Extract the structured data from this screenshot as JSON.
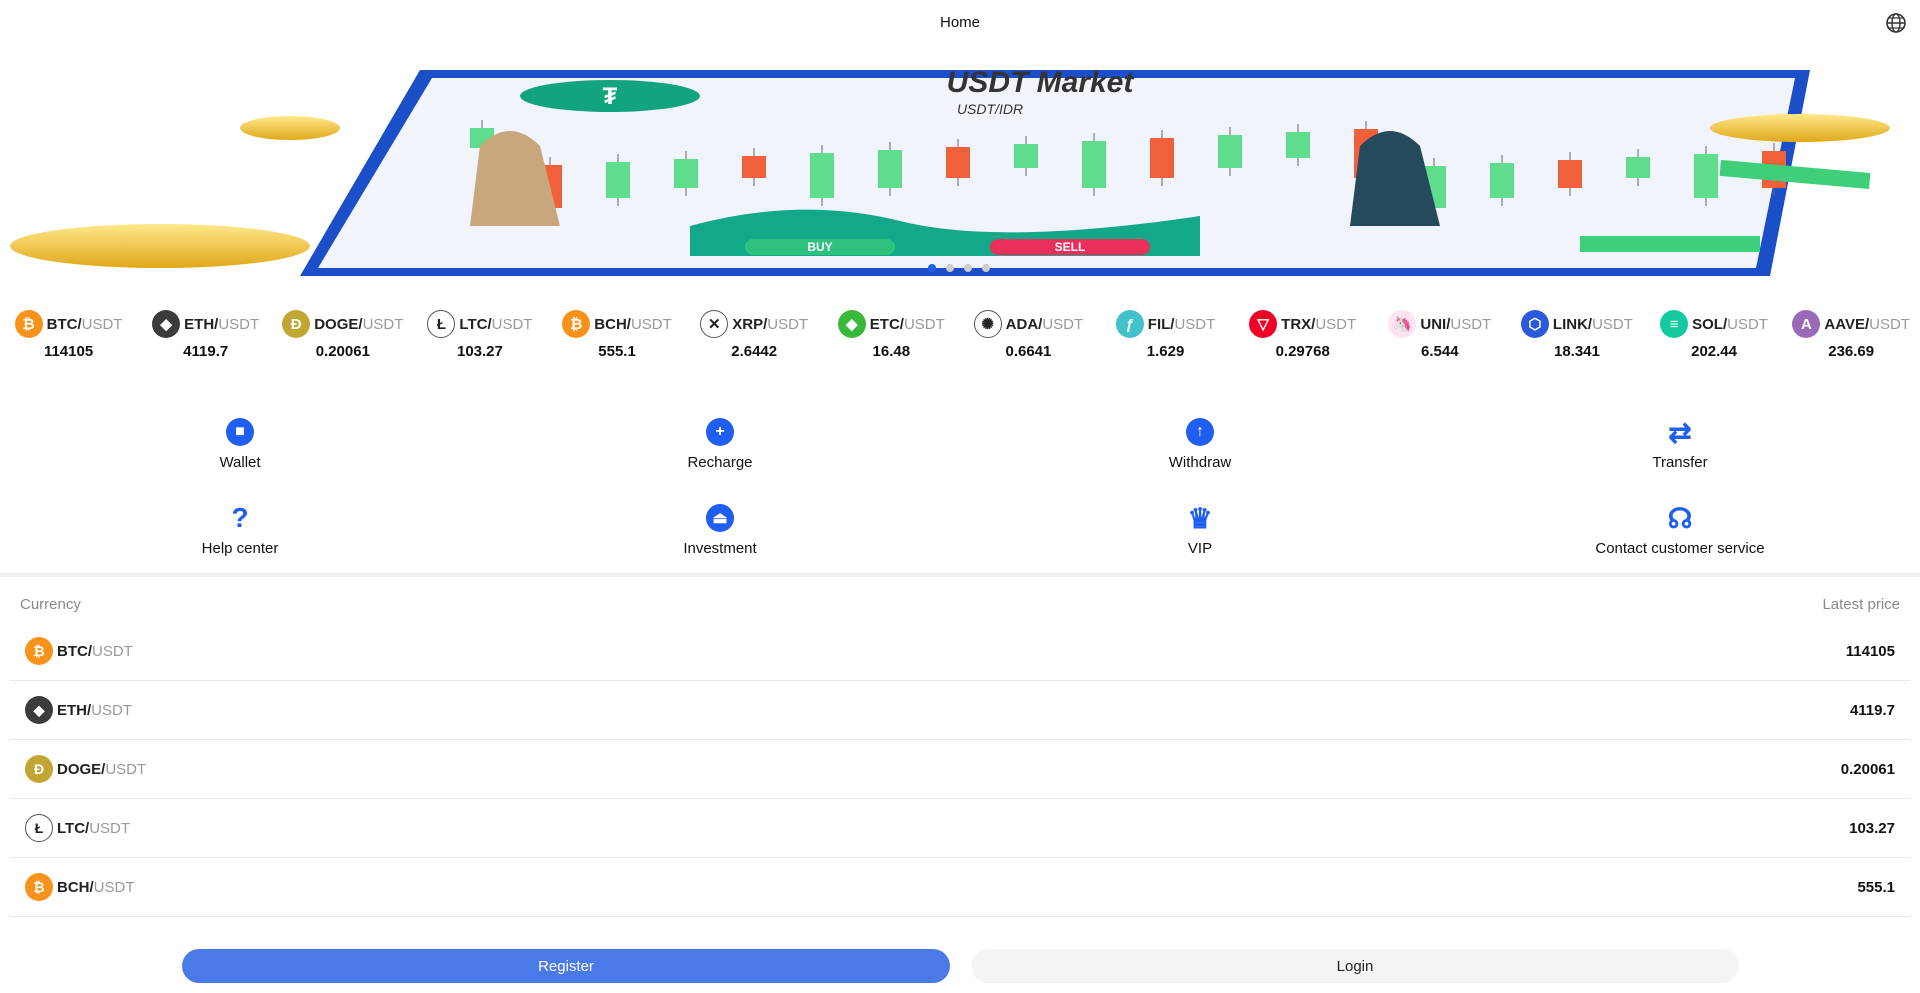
{
  "header": {
    "title": "Home",
    "language_icon": "globe-icon"
  },
  "banner": {
    "headline": "USDT Market",
    "subline": "USDT/IDR",
    "buy": "BUY",
    "sell": "SELL",
    "slides": 4,
    "active_slide": 1
  },
  "quote": "USDT",
  "ticker": [
    {
      "sym": "BTC/",
      "price": "114105",
      "color": "#f7931a",
      "glyph": "₿"
    },
    {
      "sym": "ETH/",
      "price": "4119.7",
      "color": "#3c3c3d",
      "glyph": "◆"
    },
    {
      "sym": "DOGE/",
      "price": "0.20061",
      "color": "#c2a633",
      "glyph": "Ð"
    },
    {
      "sym": "LTC/",
      "price": "103.27",
      "color": "#ffffff",
      "glyph": "Ł"
    },
    {
      "sym": "BCH/",
      "price": "555.1",
      "color": "#f7931a",
      "glyph": "₿"
    },
    {
      "sym": "XRP/",
      "price": "2.6442",
      "color": "#ffffff",
      "glyph": "✕"
    },
    {
      "sym": "ETC/",
      "price": "16.48",
      "color": "#3ab83a",
      "glyph": "◆"
    },
    {
      "sym": "ADA/",
      "price": "0.6641",
      "color": "#ffffff",
      "glyph": "✺"
    },
    {
      "sym": "FIL/",
      "price": "1.629",
      "color": "#42c1ca",
      "glyph": "ƒ"
    },
    {
      "sym": "TRX/",
      "price": "0.29768",
      "color": "#ef0027",
      "glyph": "▽"
    },
    {
      "sym": "UNI/",
      "price": "6.544",
      "color": "#ffe3f1",
      "glyph": "🦄"
    },
    {
      "sym": "LINK/",
      "price": "18.341",
      "color": "#2a5ada",
      "glyph": "⬡"
    },
    {
      "sym": "SOL/",
      "price": "202.44",
      "color": "#14c8a0",
      "glyph": "≡"
    },
    {
      "sym": "AAVE/",
      "price": "236.69",
      "color": "#9a6ab8",
      "glyph": "A"
    }
  ],
  "actions": [
    {
      "label": "Wallet",
      "icon": "wallet-icon",
      "glyph": "■"
    },
    {
      "label": "Recharge",
      "icon": "plus-icon",
      "glyph": "+"
    },
    {
      "label": "Withdraw",
      "icon": "arrow-up-icon",
      "glyph": "↑"
    },
    {
      "label": "Transfer",
      "icon": "transfer-icon",
      "glyph": "⇄"
    },
    {
      "label": "Help center",
      "icon": "help-document-icon",
      "glyph": "?"
    },
    {
      "label": "Investment",
      "icon": "bank-icon",
      "glyph": "⏏"
    },
    {
      "label": "VIP",
      "icon": "vip-crown-icon",
      "glyph": "♛"
    },
    {
      "label": "Contact customer service",
      "icon": "headset-icon",
      "glyph": "☊"
    }
  ],
  "accent": "#1e5ef0",
  "market": {
    "col_currency": "Currency",
    "col_price": "Latest price",
    "rows": [
      {
        "sym": "BTC/",
        "price": "114105"
      },
      {
        "sym": "ETH/",
        "price": "4119.7"
      },
      {
        "sym": "DOGE/",
        "price": "0.20061"
      },
      {
        "sym": "LTC/",
        "price": "103.27"
      },
      {
        "sym": "BCH/",
        "price": "555.1"
      }
    ]
  },
  "footer": {
    "register": "Register",
    "login": "Login"
  }
}
